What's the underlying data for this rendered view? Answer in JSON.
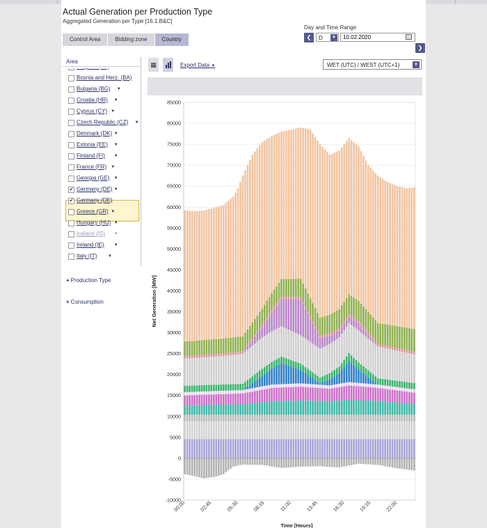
{
  "header": {
    "title": "Actual Generation per Production Type",
    "subtitle": "Aggregated Generation per Type [16.1.B&C]"
  },
  "tabs": [
    {
      "label": "Control Area",
      "active": false
    },
    {
      "label": "Bidding zone",
      "active": false
    },
    {
      "label": "Country",
      "active": true
    }
  ],
  "date_range": {
    "label": "Day and Time Range",
    "mode": "D",
    "date": "10.02.2020",
    "prev_icon": "chevron-left-icon",
    "next_icon": "chevron-right-icon"
  },
  "area_panel": {
    "title": "Area",
    "items": [
      {
        "label": "Belgium (BE)",
        "checked": false,
        "faded": false
      },
      {
        "label": "Bosnia and Herz. (BA)",
        "checked": false,
        "faded": false
      },
      {
        "label": "Bulgaria (BG)",
        "checked": false,
        "faded": false
      },
      {
        "label": "Croatia (HR)",
        "checked": false,
        "faded": false
      },
      {
        "label": "Cyprus (CY)",
        "checked": false,
        "faded": false
      },
      {
        "label": "Czech Republic (CZ)",
        "checked": false,
        "faded": false
      },
      {
        "label": "Denmark (DK)",
        "checked": false,
        "faded": false
      },
      {
        "label": "Estonia (EE)",
        "checked": false,
        "faded": false
      },
      {
        "label": "Finland (FI)",
        "checked": false,
        "faded": false
      },
      {
        "label": "France (FR)",
        "checked": false,
        "faded": false
      },
      {
        "label": "Georgia (GE)",
        "checked": false,
        "faded": false
      },
      {
        "label": "Germany (DE)",
        "checked": true,
        "faded": false
      },
      {
        "label": "Germany (DE)",
        "checked": true,
        "faded": false,
        "sub": true
      },
      {
        "label": "Greece (GR)",
        "checked": false,
        "faded": false
      },
      {
        "label": "Hungary (HU)",
        "checked": false,
        "faded": false
      },
      {
        "label": "Iceland (IS)",
        "checked": false,
        "faded": true
      },
      {
        "label": "Ireland (IE)",
        "checked": false,
        "faded": false
      },
      {
        "label": "Italy (IT)",
        "checked": false,
        "faded": false
      }
    ]
  },
  "panels": {
    "production_type": "Production Type",
    "consumption": "Consumption"
  },
  "toolbar": {
    "export_label": "Export Data",
    "timezone": "WET (UTC) / WEST (UTC+1)"
  },
  "chart_data": {
    "type": "bar",
    "stacked": true,
    "ylabel": "Net Generation [MW]",
    "xlabel": "Time [Hours]",
    "ylim": [
      -10000,
      85000
    ],
    "yticks": [
      -10000,
      -5000,
      0,
      5000,
      10000,
      15000,
      20000,
      25000,
      30000,
      35000,
      40000,
      45000,
      50000,
      55000,
      60000,
      65000,
      70000,
      75000,
      80000,
      85000
    ],
    "xtick_labels": [
      "00:00",
      "02:45",
      "05:30",
      "08:15",
      "11:00",
      "13:45",
      "16:30",
      "19:15",
      "22:00"
    ],
    "interval_minutes": 15,
    "periods": 96,
    "grid": true,
    "totals_keyframes": {
      "hours": [
        0,
        1,
        2,
        3,
        4,
        5,
        5.5,
        6,
        6.5,
        7,
        8,
        9,
        10,
        11,
        12,
        13,
        14,
        15,
        16,
        17,
        18,
        19,
        20,
        21,
        22,
        23,
        24
      ],
      "values": [
        59200,
        59000,
        59200,
        59800,
        60500,
        62500,
        64500,
        67500,
        70000,
        72500,
        75500,
        77000,
        78000,
        78500,
        79000,
        78500,
        75000,
        72500,
        73500,
        76500,
        74500,
        70000,
        67500,
        66000,
        65000,
        64500,
        64800
      ]
    },
    "negative_keyframes": {
      "hours": [
        0,
        2,
        3,
        4,
        5,
        6,
        8,
        10,
        12,
        14,
        16,
        18,
        20,
        22,
        24
      ],
      "values": [
        -3800,
        -4800,
        -4500,
        -3800,
        -2000,
        -1500,
        -1600,
        -2300,
        -2000,
        -1900,
        -2200,
        -1300,
        -1600,
        -2400,
        -3000
      ]
    },
    "series": [
      {
        "color": "#a7a3d6",
        "keyframes": {
          "hours": [
            0,
            24
          ],
          "values": [
            4600,
            4600
          ]
        }
      },
      {
        "color": "#d3d3d3",
        "keyframes": {
          "hours": [
            0,
            24
          ],
          "values": [
            4200,
            4200
          ]
        }
      },
      {
        "color": "#bdbdbd",
        "keyframes": {
          "hours": [
            0,
            24
          ],
          "values": [
            1600,
            1600
          ]
        }
      },
      {
        "color": "#3fb7a6",
        "keyframes": {
          "hours": [
            0,
            6,
            9,
            12,
            15,
            17,
            20,
            24
          ],
          "values": [
            2200,
            2500,
            3200,
            3400,
            3200,
            3600,
            3300,
            2500
          ]
        }
      },
      {
        "color": "#cc6fc8",
        "keyframes": {
          "hours": [
            0,
            6,
            9,
            12,
            15,
            17,
            20,
            24
          ],
          "values": [
            2400,
            2600,
            3200,
            3300,
            3000,
            3400,
            3100,
            2700
          ]
        }
      },
      {
        "color": "#e9d8ef",
        "keyframes": {
          "hours": [
            0,
            24
          ],
          "values": [
            800,
            800
          ]
        }
      },
      {
        "color": "#2f7fc8",
        "keyframes": {
          "hours": [
            0,
            6,
            8,
            10,
            12,
            14,
            16,
            17,
            18,
            20,
            24
          ],
          "values": [
            0,
            0,
            2500,
            5000,
            3200,
            400,
            2500,
            5000,
            3200,
            0,
            0
          ]
        }
      },
      {
        "color": "#37b36b",
        "keyframes": {
          "hours": [
            0,
            6,
            8,
            10,
            12,
            14,
            16,
            17,
            18,
            20,
            24
          ],
          "values": [
            1500,
            1500,
            1700,
            1600,
            1500,
            1300,
            1600,
            1900,
            1700,
            1500,
            1500
          ]
        }
      },
      {
        "color": "#cfcfcf",
        "keyframes": {
          "hours": [
            0,
            4,
            8,
            10,
            12,
            16,
            17,
            18,
            20,
            24
          ],
          "values": [
            6500,
            6800,
            7500,
            7200,
            6800,
            7000,
            7200,
            7600,
            7600,
            6800
          ]
        }
      },
      {
        "color": "#b786c7",
        "keyframes": {
          "hours": [
            0,
            6,
            8,
            10,
            12,
            14,
            16,
            17,
            18,
            20,
            24
          ],
          "values": [
            0,
            0,
            2500,
            6500,
            8500,
            2500,
            1500,
            1500,
            1800,
            0,
            0
          ]
        }
      },
      {
        "color": "#de8f9d",
        "keyframes": {
          "hours": [
            0,
            24
          ],
          "values": [
            600,
            600
          ]
        }
      },
      {
        "color": "#8fb04f",
        "keyframes": {
          "hours": [
            0,
            6,
            8,
            10,
            12,
            14,
            16,
            17,
            18,
            20,
            24
          ],
          "values": [
            3500,
            3600,
            3800,
            4200,
            4400,
            4300,
            4600,
            4800,
            4700,
            5000,
            5500
          ]
        }
      },
      {
        "color": "#f2c4a1",
        "keyframes": "remainder"
      }
    ]
  }
}
